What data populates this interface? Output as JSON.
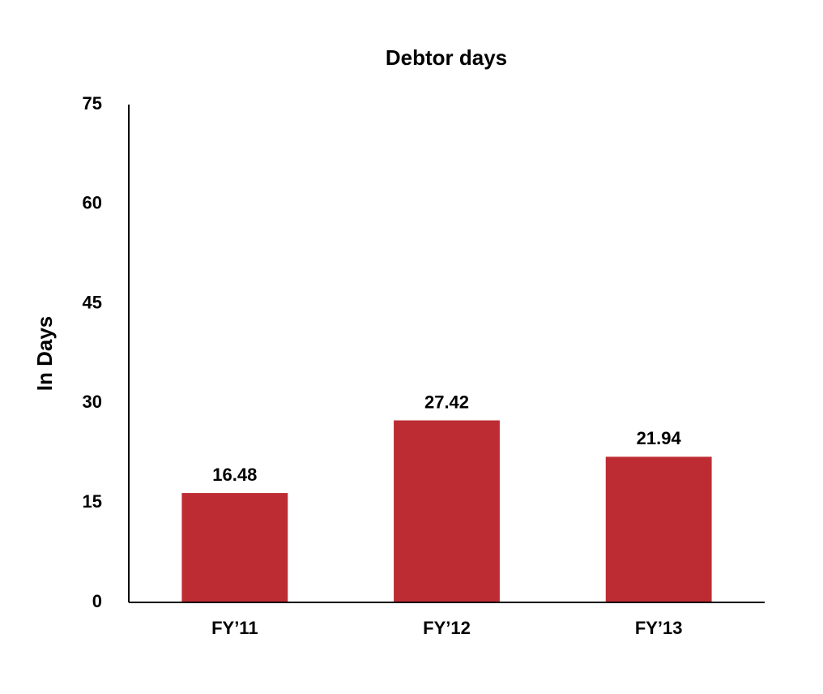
{
  "chart_data": {
    "type": "bar",
    "title": "Debtor days",
    "y_label": "In Days",
    "categories": [
      "FY’11",
      "FY’12",
      "FY’13"
    ],
    "values": [
      16.48,
      27.42,
      21.94
    ],
    "color": "#be2c33",
    "ylim": [
      0,
      75
    ],
    "yticks": [
      0,
      15,
      30,
      45,
      60,
      75
    ],
    "grid": false,
    "data_labels": true
  }
}
